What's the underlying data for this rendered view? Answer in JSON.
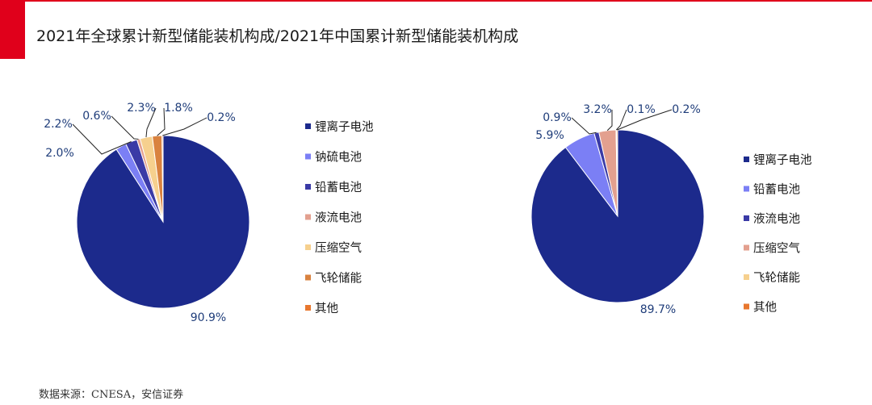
{
  "header": {
    "title": "2021年全球累计新型储能装机构成/2021年中国累计新型储能装机构成"
  },
  "footer": {
    "source": "数据来源：CNESA，安信证券"
  },
  "chart_data": [
    {
      "type": "pie",
      "categories": [
        "锂离子电池",
        "钠硫电池",
        "铅蓄电池",
        "液流电池",
        "压缩空气",
        "飞轮储能",
        "其他"
      ],
      "values": [
        90.9,
        2.0,
        2.2,
        0.6,
        2.3,
        1.8,
        0.2
      ],
      "labels": [
        "90.9%",
        "2.0%",
        "2.2%",
        "0.6%",
        "2.3%",
        "1.8%",
        "0.2%"
      ],
      "colors": [
        "#1c2a8c",
        "#7b7ff5",
        "#3a3aa6",
        "#e3a08f",
        "#f6d08e",
        "#d9823f",
        "#e8772e"
      ],
      "legend_position": "right"
    },
    {
      "type": "pie",
      "categories": [
        "锂离子电池",
        "铅蓄电池",
        "液流电池",
        "压缩空气",
        "飞轮储能",
        "其他"
      ],
      "values": [
        89.7,
        5.9,
        0.9,
        3.2,
        0.1,
        0.2
      ],
      "labels": [
        "89.7%",
        "5.9%",
        "0.9%",
        "3.2%",
        "0.1%",
        "0.2%"
      ],
      "colors": [
        "#1c2a8c",
        "#7b7ff5",
        "#3a3aa6",
        "#e3a08f",
        "#f6d08e",
        "#e8772e"
      ],
      "legend_position": "right"
    }
  ]
}
